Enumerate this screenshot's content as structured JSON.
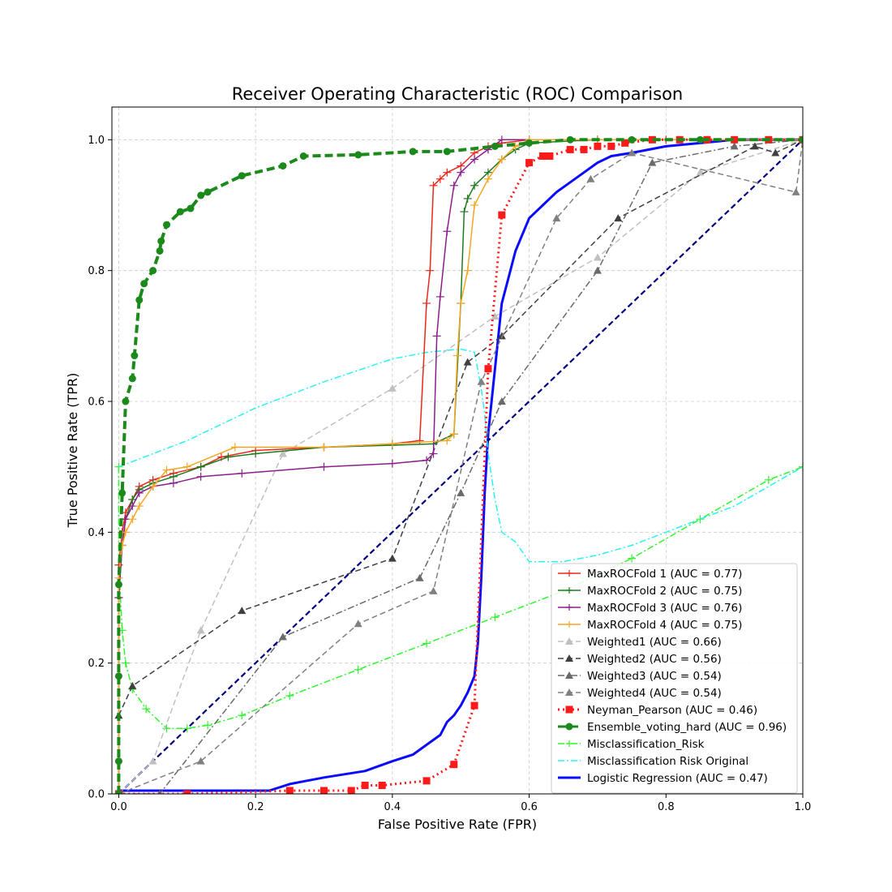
{
  "chart_data": {
    "type": "line",
    "title": "Receiver Operating Characteristic (ROC) Comparison",
    "xlabel": "False Positive Rate (FPR)",
    "ylabel": "True Positive Rate (TPR)",
    "xlim": [
      -0.01,
      1.0
    ],
    "ylim": [
      0.0,
      1.05
    ],
    "xticks": [
      0.0,
      0.2,
      0.4,
      0.6,
      0.8,
      1.0
    ],
    "yticks": [
      0.0,
      0.2,
      0.4,
      0.6,
      0.8,
      1.0
    ],
    "xtick_labels": [
      "0.0",
      "0.2",
      "0.4",
      "0.6",
      "0.8",
      "1.0"
    ],
    "ytick_labels": [
      "0.0",
      "0.2",
      "0.4",
      "0.6",
      "0.8",
      "1.0"
    ],
    "grid": true,
    "legend_position": "lower-right",
    "series": [
      {
        "name": "MaxROCFold 1 (AUC = 0.77)",
        "color": "#e8291c",
        "linestyle": "solid",
        "marker": "plus",
        "x": [
          0.0,
          0.0,
          0.005,
          0.01,
          0.02,
          0.03,
          0.05,
          0.08,
          0.12,
          0.15,
          0.2,
          0.3,
          0.4,
          0.44,
          0.45,
          0.455,
          0.46,
          0.47,
          0.48,
          0.5,
          0.52,
          0.54,
          0.56,
          0.6,
          0.7,
          0.8,
          1.0
        ],
        "y": [
          0.0,
          0.35,
          0.4,
          0.43,
          0.45,
          0.47,
          0.48,
          0.49,
          0.5,
          0.515,
          0.525,
          0.53,
          0.535,
          0.54,
          0.75,
          0.8,
          0.93,
          0.94,
          0.95,
          0.96,
          0.98,
          0.99,
          0.995,
          1.0,
          1.0,
          1.0,
          1.0
        ]
      },
      {
        "name": "MaxROCFold 2 (AUC = 0.75)",
        "color": "#1f7a1f",
        "linestyle": "solid",
        "marker": "plus",
        "x": [
          0.0,
          0.0,
          0.005,
          0.01,
          0.02,
          0.03,
          0.05,
          0.08,
          0.12,
          0.16,
          0.2,
          0.3,
          0.4,
          0.46,
          0.49,
          0.5,
          0.505,
          0.51,
          0.52,
          0.54,
          0.56,
          0.58,
          0.6,
          0.7,
          1.0
        ],
        "y": [
          0.0,
          0.3,
          0.38,
          0.42,
          0.45,
          0.465,
          0.475,
          0.485,
          0.5,
          0.515,
          0.52,
          0.53,
          0.533,
          0.535,
          0.55,
          0.75,
          0.89,
          0.91,
          0.93,
          0.95,
          0.97,
          0.985,
          0.995,
          1.0,
          1.0
        ]
      },
      {
        "name": "MaxROCFold 3 (AUC = 0.76)",
        "color": "#8b1e8b",
        "linestyle": "solid",
        "marker": "plus",
        "x": [
          0.0,
          0.0,
          0.005,
          0.01,
          0.02,
          0.03,
          0.05,
          0.08,
          0.12,
          0.18,
          0.3,
          0.4,
          0.45,
          0.46,
          0.465,
          0.47,
          0.48,
          0.49,
          0.5,
          0.52,
          0.54,
          0.56,
          0.6,
          0.7,
          1.0
        ],
        "y": [
          0.0,
          0.3,
          0.38,
          0.42,
          0.44,
          0.46,
          0.47,
          0.475,
          0.485,
          0.49,
          0.5,
          0.505,
          0.51,
          0.52,
          0.7,
          0.76,
          0.86,
          0.93,
          0.95,
          0.97,
          0.985,
          1.0,
          1.0,
          1.0,
          1.0
        ]
      },
      {
        "name": "MaxROCFold 4 (AUC = 0.75)",
        "color": "#f5a623",
        "linestyle": "solid",
        "marker": "plus",
        "x": [
          0.0,
          0.0,
          0.005,
          0.01,
          0.02,
          0.03,
          0.05,
          0.07,
          0.1,
          0.17,
          0.3,
          0.4,
          0.48,
          0.49,
          0.495,
          0.5,
          0.51,
          0.52,
          0.54,
          0.56,
          0.58,
          0.6,
          0.7,
          1.0
        ],
        "y": [
          0.0,
          0.33,
          0.38,
          0.4,
          0.42,
          0.44,
          0.47,
          0.495,
          0.5,
          0.53,
          0.53,
          0.535,
          0.54,
          0.55,
          0.67,
          0.75,
          0.8,
          0.9,
          0.94,
          0.97,
          0.99,
          1.0,
          1.0,
          1.0
        ]
      },
      {
        "name": "Weighted1 (AUC = 0.66)",
        "color": "#c0c0c0",
        "linestyle": "dashed",
        "marker": "triangle",
        "x": [
          0.0,
          0.05,
          0.12,
          0.24,
          0.4,
          0.55,
          0.7,
          0.85,
          1.0
        ],
        "y": [
          0.0,
          0.05,
          0.25,
          0.52,
          0.62,
          0.73,
          0.82,
          0.95,
          1.0
        ]
      },
      {
        "name": "Weighted2 (AUC = 0.56)",
        "color": "#404040",
        "linestyle": "dashed",
        "marker": "triangle",
        "x": [
          0.0,
          0.02,
          0.18,
          0.4,
          0.51,
          0.56,
          0.73,
          0.93,
          0.96,
          1.0
        ],
        "y": [
          0.12,
          0.165,
          0.28,
          0.36,
          0.66,
          0.7,
          0.88,
          0.99,
          0.98,
          1.0
        ]
      },
      {
        "name": "Weighted3 (AUC = 0.54)",
        "color": "#6a6a6a",
        "linestyle": "dashdot",
        "marker": "triangle",
        "x": [
          0.0,
          0.06,
          0.24,
          0.44,
          0.5,
          0.56,
          0.7,
          0.78,
          0.9,
          1.0
        ],
        "y": [
          0.0,
          0.0,
          0.24,
          0.33,
          0.46,
          0.6,
          0.8,
          0.965,
          0.99,
          1.0
        ]
      },
      {
        "name": "Weighted4 (AUC = 0.54)",
        "color": "#808080",
        "linestyle": "dashed",
        "marker": "triangle",
        "x": [
          0.0,
          0.12,
          0.35,
          0.46,
          0.53,
          0.64,
          0.69,
          0.75,
          0.99,
          1.0
        ],
        "y": [
          0.0,
          0.05,
          0.26,
          0.31,
          0.63,
          0.88,
          0.94,
          0.98,
          0.92,
          1.0
        ]
      },
      {
        "name": "Neyman_Pearson (AUC = 0.46)",
        "color": "#ff1a1a",
        "linestyle": "dotted",
        "marker": "square",
        "x": [
          0.0,
          0.1,
          0.25,
          0.3,
          0.34,
          0.36,
          0.385,
          0.45,
          0.49,
          0.52,
          0.54,
          0.56,
          0.6,
          0.62,
          0.63,
          0.66,
          0.68,
          0.7,
          0.72,
          0.74,
          0.78,
          0.82,
          0.86,
          0.9,
          0.95,
          1.0
        ],
        "y": [
          0.0,
          0.0,
          0.005,
          0.005,
          0.005,
          0.013,
          0.013,
          0.02,
          0.045,
          0.135,
          0.65,
          0.885,
          0.965,
          0.975,
          0.975,
          0.985,
          0.985,
          0.99,
          0.99,
          0.995,
          1.0,
          1.0,
          1.0,
          1.0,
          1.0,
          1.0
        ]
      },
      {
        "name": "Ensemble_voting_hard (AUC = 0.96)",
        "color": "#1b8a1b",
        "linestyle": "dashed",
        "marker": "circle",
        "x": [
          0.0,
          0.0,
          0.0,
          0.0,
          0.005,
          0.01,
          0.02,
          0.023,
          0.03,
          0.037,
          0.05,
          0.06,
          0.062,
          0.07,
          0.09,
          0.105,
          0.12,
          0.13,
          0.18,
          0.24,
          0.27,
          0.35,
          0.43,
          0.48,
          0.55,
          0.6,
          0.66,
          0.75,
          0.85,
          1.0
        ],
        "y": [
          0.0,
          0.05,
          0.18,
          0.32,
          0.46,
          0.6,
          0.635,
          0.67,
          0.755,
          0.78,
          0.8,
          0.83,
          0.845,
          0.87,
          0.89,
          0.895,
          0.915,
          0.92,
          0.945,
          0.96,
          0.975,
          0.977,
          0.982,
          0.982,
          0.99,
          0.995,
          1.0,
          1.0,
          1.0,
          1.0
        ]
      },
      {
        "name": "Misclassification_Risk",
        "color": "#2ef52e",
        "linestyle": "dashdot",
        "marker": "plus",
        "x": [
          0.0,
          0.0,
          0.005,
          0.01,
          0.02,
          0.04,
          0.07,
          0.1,
          0.13,
          0.18,
          0.25,
          0.35,
          0.45,
          0.55,
          0.65,
          0.75,
          0.85,
          0.95,
          1.0
        ],
        "y": [
          0.5,
          0.35,
          0.25,
          0.2,
          0.16,
          0.13,
          0.1,
          0.1,
          0.105,
          0.12,
          0.15,
          0.19,
          0.23,
          0.27,
          0.31,
          0.36,
          0.42,
          0.48,
          0.5
        ]
      },
      {
        "name": "Misclassification Risk Original",
        "color": "#27f3f3",
        "linestyle": "dashdot",
        "marker": "none",
        "x": [
          0.0,
          0.1,
          0.2,
          0.3,
          0.4,
          0.45,
          0.5,
          0.52,
          0.53,
          0.535,
          0.54,
          0.55,
          0.56,
          0.58,
          0.6,
          0.65,
          0.7,
          0.75,
          0.8,
          0.85,
          0.9,
          1.0
        ],
        "y": [
          0.5,
          0.54,
          0.59,
          0.63,
          0.665,
          0.675,
          0.68,
          0.675,
          0.62,
          0.58,
          0.52,
          0.45,
          0.4,
          0.385,
          0.355,
          0.355,
          0.365,
          0.38,
          0.4,
          0.42,
          0.44,
          0.5
        ]
      },
      {
        "name": "Logistic Regression (AUC = 0.47)",
        "color": "#0a0aff",
        "linestyle": "solid",
        "marker": "none",
        "x": [
          0.0,
          0.1,
          0.22,
          0.25,
          0.3,
          0.36,
          0.4,
          0.43,
          0.45,
          0.47,
          0.48,
          0.49,
          0.5,
          0.51,
          0.52,
          0.525,
          0.53,
          0.535,
          0.54,
          0.55,
          0.56,
          0.57,
          0.58,
          0.6,
          0.62,
          0.64,
          0.66,
          0.68,
          0.7,
          0.72,
          0.75,
          0.8,
          0.85,
          0.9,
          1.0
        ],
        "y": [
          0.005,
          0.005,
          0.005,
          0.015,
          0.025,
          0.035,
          0.05,
          0.06,
          0.075,
          0.09,
          0.11,
          0.12,
          0.135,
          0.155,
          0.18,
          0.23,
          0.33,
          0.46,
          0.55,
          0.65,
          0.75,
          0.79,
          0.83,
          0.88,
          0.9,
          0.92,
          0.935,
          0.95,
          0.965,
          0.975,
          0.98,
          0.99,
          0.995,
          1.0,
          1.0
        ]
      },
      {
        "name": "",
        "color": "#000080",
        "linestyle": "dashed",
        "marker": "none",
        "legend": false,
        "x": [
          0.0,
          1.0
        ],
        "y": [
          0.0,
          1.0
        ]
      }
    ]
  }
}
